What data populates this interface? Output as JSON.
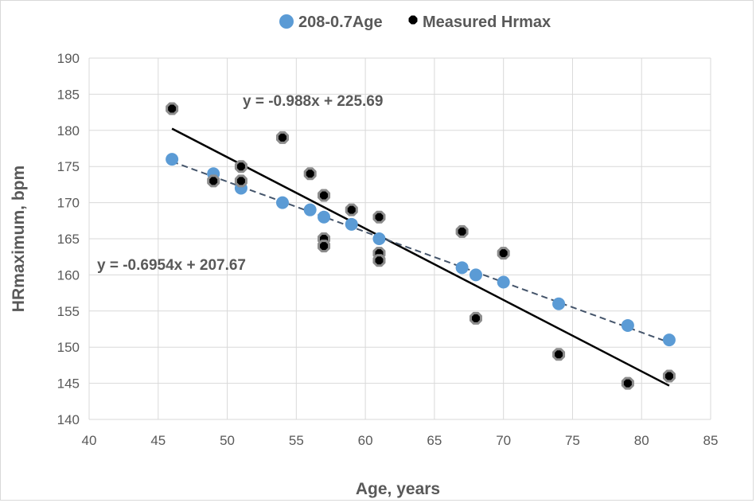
{
  "chart_data": {
    "type": "scatter",
    "xlabel": "Age, years",
    "ylabel": "HRmaximum, bpm",
    "xlim": [
      40,
      85
    ],
    "ylim": [
      140,
      190
    ],
    "x_ticks": [
      40,
      45,
      50,
      55,
      60,
      65,
      70,
      75,
      80,
      85
    ],
    "y_ticks": [
      140,
      145,
      150,
      155,
      160,
      165,
      170,
      175,
      180,
      185,
      190
    ],
    "grid": true,
    "legend_position": "top",
    "series": [
      {
        "name": "208-0.7Age",
        "color": "#5b9bd5",
        "marker": "circle",
        "points": [
          [
            46,
            176
          ],
          [
            49,
            174
          ],
          [
            51,
            172
          ],
          [
            54,
            170
          ],
          [
            56,
            169
          ],
          [
            57,
            168
          ],
          [
            59,
            167
          ],
          [
            61,
            165
          ],
          [
            67,
            161
          ],
          [
            68,
            160
          ],
          [
            70,
            159
          ],
          [
            74,
            156
          ],
          [
            79,
            153
          ],
          [
            82,
            151
          ]
        ]
      },
      {
        "name": "Measured Hrmax",
        "color": "#000000",
        "marker": "octagon",
        "points": [
          [
            46,
            183
          ],
          [
            49,
            173
          ],
          [
            51,
            175
          ],
          [
            51,
            173
          ],
          [
            54,
            179
          ],
          [
            56,
            174
          ],
          [
            57,
            171
          ],
          [
            57,
            165
          ],
          [
            57,
            164
          ],
          [
            59,
            169
          ],
          [
            61,
            168
          ],
          [
            61,
            163
          ],
          [
            61,
            162
          ],
          [
            67,
            166
          ],
          [
            68,
            154
          ],
          [
            70,
            163
          ],
          [
            74,
            149
          ],
          [
            79,
            145
          ],
          [
            82,
            146
          ]
        ]
      }
    ],
    "trendlines": [
      {
        "series": "Measured Hrmax",
        "style": "solid",
        "color": "#000000",
        "slope": -0.988,
        "intercept": 225.69,
        "x_range": [
          46,
          82
        ],
        "equation": "y = -0.988x + 225.69"
      },
      {
        "series": "208-0.7Age",
        "style": "dashed",
        "color": "#44546a",
        "slope": -0.6954,
        "intercept": 207.67,
        "x_range": [
          46,
          82
        ],
        "equation": "y = -0.6954x + 207.67"
      }
    ]
  }
}
